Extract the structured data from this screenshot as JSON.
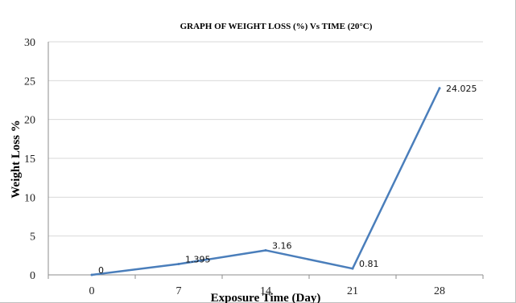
{
  "chart_data": {
    "type": "line",
    "title": "GRAPH OF WEIGHT LOSS (%) Vs TIME   (20°C)",
    "xlabel": "Exposure Time (Day)",
    "ylabel": "Weight Loss %",
    "categories": [
      "0",
      "7",
      "14",
      "21",
      "28"
    ],
    "series": [
      {
        "values": [
          0,
          1.395,
          3.16,
          0.81,
          24.025
        ],
        "data_labels": [
          "0",
          "1.395",
          "3.16",
          "0.81",
          "24.025"
        ],
        "color": "#4a7ebb"
      }
    ],
    "ylim": [
      0,
      30
    ],
    "yticks": [
      0,
      5,
      10,
      15,
      20,
      25,
      30
    ],
    "grid": true,
    "legend": "none"
  }
}
